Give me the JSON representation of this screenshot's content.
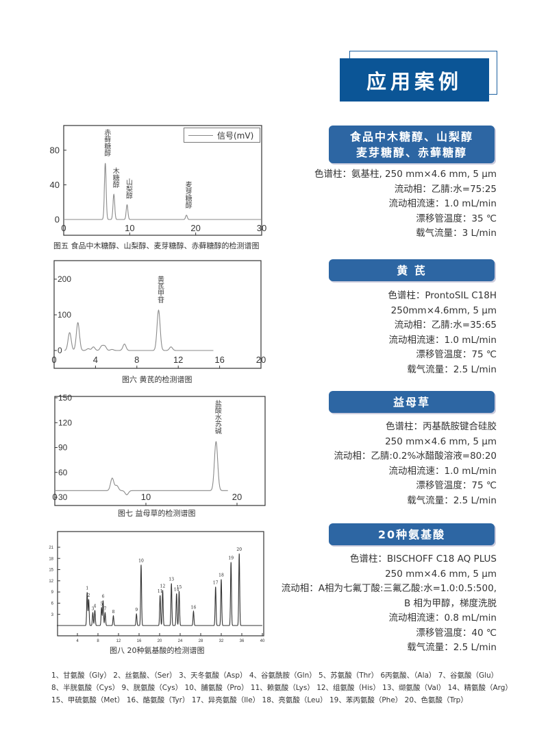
{
  "header": {
    "title": "应用案例"
  },
  "sections": [
    {
      "title_lines": [
        "食品中木糖醇、山梨醇",
        "麦芽糖醇、赤藓糖醇"
      ],
      "specs": [
        "色谱柱：氨基柱, 250 mm×4.6 mm, 5 μm",
        "流动相：乙腈:水=75:25",
        "流动相流速：1.0 mL/min",
        "漂移管温度：35 ℃",
        "载气流量：3 L/min"
      ]
    },
    {
      "title_lines": [
        "黄 芪"
      ],
      "specs": [
        "色谱柱：ProntoSIL C18H",
        "250mm×4.6mm, 5 μm",
        "流动相：乙腈:水=35:65",
        "流动相流速：1.0 mL/min",
        "漂移管温度：75 ℃",
        "载气流量：2.5 L/min"
      ]
    },
    {
      "title_lines": [
        "益母草"
      ],
      "specs": [
        "色谱柱：丙基酰胺键合硅胶",
        "250 mm×4.6 mm, 5 μm",
        "流动相：乙腈:0.2%冰醋酸溶液=80:20",
        "流动相流速：1.0 mL/min",
        "漂移管温度：75 ℃",
        "载气流量：2.5 L/min"
      ]
    },
    {
      "title_lines": [
        "20种氨基酸"
      ],
      "specs": [
        "色谱柱：BISCHOFF C18 AQ PLUS",
        "250 mm×4.6 mm, 5 μm",
        "流动相：A相为七氟丁酸:三氟乙酸:水=1.0:0.5:500,",
        "B 相为甲醇，梯度洗脱",
        "流动相流速：0.8 mL/min",
        "漂移管温度：40 ℃",
        "载气流量：2.5 L/min"
      ]
    }
  ],
  "colors": {
    "title_bg": "#0b5596",
    "section_bg": "#2d66a3",
    "trace": "#8a8a8a",
    "amino_trace": "#333333"
  },
  "chart_data": [
    {
      "type": "line",
      "caption": "图五 食品中木糖醇、山梨醇、麦芽糖醇、赤藓糖醇的检测谱图",
      "legend": "信号(mV)",
      "legend_position": "top-right",
      "xlim": [
        0,
        30
      ],
      "ylim": [
        -10,
        100
      ],
      "xticks": [
        "0",
        "10",
        "20",
        "30"
      ],
      "yticks": [
        "0",
        "40",
        "80"
      ],
      "baseline": 0,
      "x_range": [
        0,
        30
      ],
      "peaks": [
        {
          "x": 6.3,
          "y": 65,
          "label": "赤藓糖醇"
        },
        {
          "x": 7.6,
          "y": 29,
          "label": "木糖醇"
        },
        {
          "x": 9.6,
          "y": 17,
          "label": "山梨醇"
        },
        {
          "x": 18.6,
          "y": 5,
          "label": "麦芽糖醇"
        }
      ]
    },
    {
      "type": "line",
      "caption": "图六 黄芪的检测谱图",
      "xlim": [
        0,
        20
      ],
      "ylim": [
        -50,
        250
      ],
      "xticks": [
        "0",
        "4",
        "8",
        "12",
        "16",
        "20"
      ],
      "yticks": [
        "0",
        "100",
        "200"
      ],
      "baseline": 0,
      "x_range": [
        1,
        15.4
      ],
      "peaks": [
        {
          "x": 1.5,
          "y": 50,
          "label": ""
        },
        {
          "x": 2.3,
          "y": 78,
          "label": ""
        },
        {
          "x": 3.3,
          "y": 5,
          "label": ""
        },
        {
          "x": 3.8,
          "y": 10,
          "label": ""
        },
        {
          "x": 4.6,
          "y": 12,
          "label": ""
        },
        {
          "x": 4.9,
          "y": 12,
          "label": ""
        },
        {
          "x": 5.6,
          "y": 3,
          "label": ""
        },
        {
          "x": 6.8,
          "y": 18,
          "label": ""
        },
        {
          "x": 10.1,
          "y": 113,
          "label": "黄芪甲苷"
        },
        {
          "x": 11.3,
          "y": 10,
          "label": ""
        }
      ]
    },
    {
      "type": "line",
      "caption": "图七 益母草的检测谱图",
      "xlim": [
        0,
        23
      ],
      "ylim": [
        20,
        150
      ],
      "xticks": [
        "0",
        "10",
        "20"
      ],
      "yticks": [
        "30",
        "60",
        "90",
        "120",
        "150"
      ],
      "baseline": 38,
      "x_range": [
        0,
        19
      ],
      "peaks": [
        {
          "x": 6.3,
          "y": 15,
          "label": ""
        },
        {
          "x": 6.8,
          "y": 6,
          "label": ""
        },
        {
          "x": 7.9,
          "y": -5,
          "label": ""
        },
        {
          "x": 17.7,
          "y": 59,
          "label": "盐酸水苏碱"
        }
      ]
    },
    {
      "type": "line",
      "caption": "图八 20种氨基酸的检测谱图",
      "xlim": [
        0,
        40
      ],
      "ylim": [
        -3,
        24
      ],
      "xticks": [
        "4",
        "8",
        "12",
        "16",
        "20",
        "24",
        "28",
        "32",
        "36",
        "40"
      ],
      "yticks": [
        "3",
        "6",
        "9",
        "12",
        "15",
        "18",
        "21"
      ],
      "baseline": 0,
      "x_range": [
        0,
        40
      ],
      "peaks": [
        {
          "x": 5.9,
          "y": 8.9,
          "label": "1"
        },
        {
          "x": 6.2,
          "y": 7.0,
          "label": "2"
        },
        {
          "x": 7.0,
          "y": 3.4,
          "label": "3"
        },
        {
          "x": 7.4,
          "y": 4.1,
          "label": "4"
        },
        {
          "x": 8.7,
          "y": 4.7,
          "label": "5"
        },
        {
          "x": 9.0,
          "y": 6.7,
          "label": "6"
        },
        {
          "x": 9.4,
          "y": 3.4,
          "label": "7"
        },
        {
          "x": 11.0,
          "y": 2.6,
          "label": "8"
        },
        {
          "x": 15.5,
          "y": 3.1,
          "label": "9"
        },
        {
          "x": 16.4,
          "y": 16.3,
          "label": "10"
        },
        {
          "x": 20.1,
          "y": 8.1,
          "label": "11"
        },
        {
          "x": 20.6,
          "y": 9.5,
          "label": "12"
        },
        {
          "x": 22.3,
          "y": 11.3,
          "label": "13"
        },
        {
          "x": 23.3,
          "y": 8.6,
          "label": "14"
        },
        {
          "x": 23.8,
          "y": 9.2,
          "label": "15"
        },
        {
          "x": 26.6,
          "y": 3.8,
          "label": "16"
        },
        {
          "x": 30.9,
          "y": 10.4,
          "label": "17"
        },
        {
          "x": 32.0,
          "y": 12.4,
          "label": "18"
        },
        {
          "x": 33.9,
          "y": 17.0,
          "label": "19"
        },
        {
          "x": 35.5,
          "y": 19.3,
          "label": "20"
        }
      ]
    }
  ],
  "footnote": [
    "1、甘氨酸（Gly） 2、丝氨酸、（Ser） 3、天冬氨酸（Asp） 4、谷氨酰胺（Gln） 5、苏氨酸（Thr） 6丙氨酸、（Ala） 7、谷氨酸（Glu）",
    "8、半胱氨酸（Cys） 9、胱氨酸（Cys） 10、脯氨酸（Pro） 11、赖氨酸（Lys） 12、组氨酸（His） 13、缬氨酸（Val） 14、精氨酸（Arg）",
    "15、甲硫氨酸（Met） 16、酪氨酸（Tyr） 17、异亮氨酸（Ile） 18、亮氨酸（Leu） 19、苯丙氨酸（Phe） 20、色氨酸（Trp）"
  ]
}
